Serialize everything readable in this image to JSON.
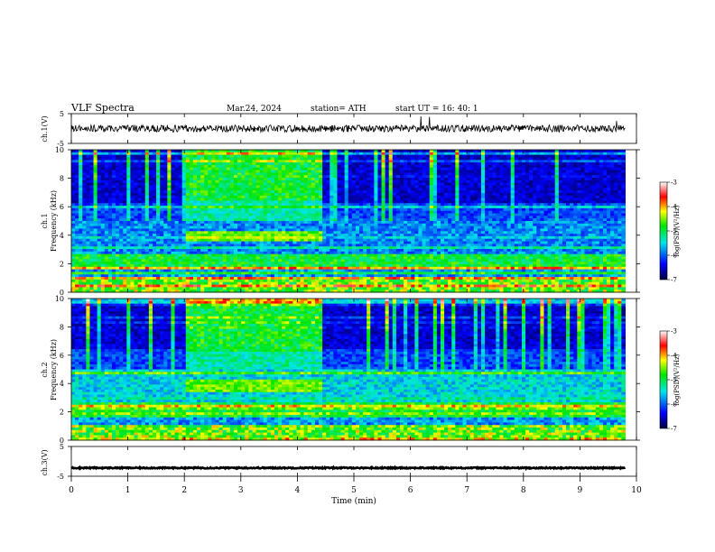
{
  "header": {
    "title": "VLF  Spectra",
    "date": "Mar.24, 2024",
    "station": "station= ATH",
    "start": "start  UT  =    16: 40: 1"
  },
  "chart_data": [
    {
      "type": "line",
      "name": "ch1-waveform",
      "ylabel": "ch.1(V)",
      "ylim": [
        -5,
        5
      ],
      "yticks": [
        "5",
        "-5"
      ],
      "xlim": [
        0,
        10
      ],
      "waveform_level": 0,
      "waveform_spread": 1.2
    },
    {
      "type": "heatmap",
      "name": "ch1-spectrogram",
      "ylabel": "ch.1\nFrequency  (kHz)",
      "ylim": [
        0,
        10
      ],
      "yticks": [
        "0",
        "2",
        "4",
        "6",
        "8",
        "10"
      ],
      "xlim": [
        0,
        10
      ],
      "data_end_min": 9.8,
      "enhanced_band": {
        "x_start_min": 2.05,
        "x_end_min": 4.45,
        "freq_kHz": [
          3.6,
          4.2
        ]
      },
      "colorbar": {
        "label": "log(PSD)(V²/Hz)",
        "range": [
          -7,
          -3
        ],
        "ticks": [
          "-3",
          "-4",
          "-5",
          "-6",
          "-7"
        ]
      }
    },
    {
      "type": "heatmap",
      "name": "ch2-spectrogram",
      "ylabel": "ch.2\nFrequency  (kHz)",
      "ylim": [
        0,
        10
      ],
      "yticks": [
        "0",
        "2",
        "4",
        "6",
        "8",
        "10"
      ],
      "xlim": [
        0,
        10
      ],
      "data_end_min": 9.8,
      "enhanced_band": {
        "x_start_min": 2.05,
        "x_end_min": 4.45,
        "freq_kHz": [
          3.4,
          4.2
        ]
      },
      "colorbar": {
        "label": "log(PSD)(V²/Hz)",
        "range": [
          -7,
          -3
        ],
        "ticks": [
          "-3",
          "-4",
          "-5",
          "-6",
          "-7"
        ]
      }
    },
    {
      "type": "line",
      "name": "ch3-waveform",
      "ylabel": "ch.3(V)",
      "ylim": [
        -5,
        5
      ],
      "yticks": [
        "5",
        "-5"
      ],
      "xlim": [
        0,
        10
      ],
      "waveform_level": -2.2,
      "waveform_spread": 0.2
    }
  ],
  "x_axis": {
    "label": "Time  (min)",
    "ticks": [
      "0",
      "1",
      "2",
      "3",
      "4",
      "5",
      "6",
      "7",
      "8",
      "9",
      "10"
    ]
  },
  "colors": {
    "colormap": [
      "#00003c",
      "#0000ff",
      "#00e6e6",
      "#00e600",
      "#ffff00",
      "#ff0000",
      "#ffffff"
    ]
  }
}
